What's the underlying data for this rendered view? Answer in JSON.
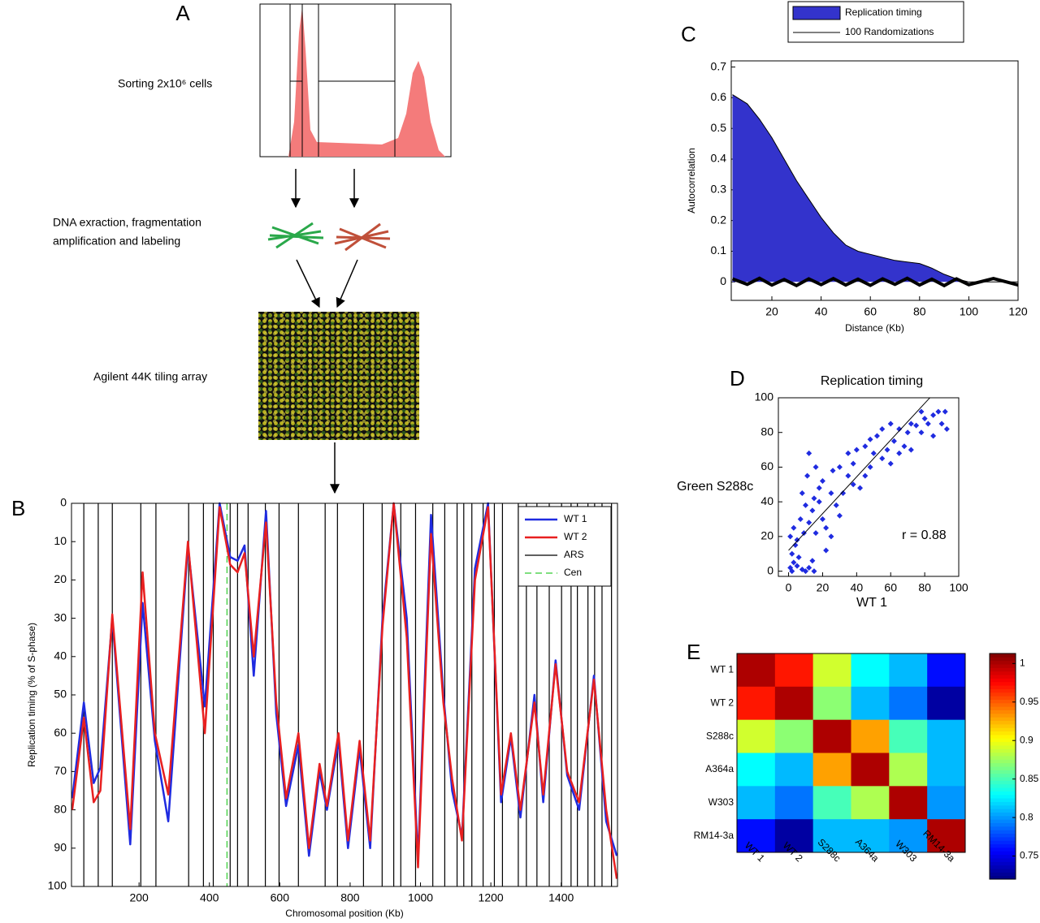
{
  "diagram": {
    "panel": "A",
    "sorting": "Sorting 2x10⁶ cells",
    "dna": [
      "DNA exraction, fragmentation",
      "amplification and labeling"
    ],
    "array": "Agilent 44K tiling array"
  },
  "chart_data": [
    {
      "type": "line",
      "panel": "B",
      "xlabel": "Chromosomal position (Kb)",
      "ylabel": "Replication timing (% of S-phase)",
      "xlim": [
        8,
        1560
      ],
      "ylim": [
        0,
        100
      ],
      "reverse_y": true,
      "xticks": [
        200,
        400,
        600,
        800,
        1000,
        1200,
        1400
      ],
      "yticks": [
        0,
        10,
        20,
        30,
        40,
        50,
        60,
        70,
        80,
        90,
        100
      ],
      "x": [
        10,
        43,
        71,
        90,
        124,
        175,
        210,
        245,
        283,
        339,
        387,
        429,
        459,
        480,
        500,
        526,
        561,
        590,
        618,
        653,
        683,
        713,
        734,
        767,
        794,
        827,
        857,
        892,
        924,
        961,
        993,
        1030,
        1065,
        1090,
        1118,
        1155,
        1192,
        1229,
        1257,
        1284,
        1324,
        1349,
        1384,
        1417,
        1451,
        1493,
        1528,
        1558
      ],
      "series": [
        {
          "name": "WT 1",
          "color": "#1f2be0",
          "values": [
            77,
            52,
            73,
            69,
            30,
            89,
            26,
            62,
            83,
            11,
            53,
            0,
            14,
            15,
            11,
            45,
            2,
            55,
            79,
            63,
            92,
            70,
            80,
            62,
            90,
            64,
            90,
            30,
            0,
            30,
            93,
            3,
            50,
            75,
            87,
            17,
            0,
            78,
            61,
            82,
            50,
            78,
            41,
            71,
            80,
            45,
            83,
            92
          ]
        },
        {
          "name": "WT 2",
          "color": "#e82020",
          "values": [
            80,
            56,
            78,
            75,
            29,
            85,
            18,
            60,
            76,
            10,
            60,
            1,
            16,
            18,
            13,
            40,
            5,
            52,
            77,
            60,
            90,
            68,
            79,
            60,
            88,
            62,
            88,
            32,
            0,
            35,
            95,
            8,
            52,
            72,
            88,
            20,
            1,
            76,
            60,
            80,
            52,
            76,
            42,
            70,
            78,
            46,
            80,
            98
          ]
        },
        {
          "name": "ARS",
          "color": "#000000",
          "style": "vline",
          "x": [
            43,
            84,
            124,
            205,
            248,
            341,
            383,
            411,
            459,
            480,
            510,
            559,
            598,
            653,
            729,
            764,
            838,
            891,
            924,
            944,
            986,
            1035,
            1069,
            1104,
            1123,
            1146,
            1178,
            1210,
            1233,
            1278,
            1301,
            1331,
            1366,
            1401,
            1428,
            1446,
            1476,
            1495,
            1516,
            1543
          ]
        },
        {
          "name": "Cen",
          "color": "#33cc33",
          "style": "vline",
          "dashed": true,
          "x": [
            450
          ]
        }
      ]
    },
    {
      "type": "area",
      "panel": "C",
      "xlabel": "Distance (Kb)",
      "ylabel": "Autocorrelation",
      "xlim": [
        3.5,
        120
      ],
      "ylim": [
        -0.06,
        0.72
      ],
      "xticks": [
        20,
        40,
        60,
        80,
        100,
        120
      ],
      "yticks": [
        0,
        0.1,
        0.2,
        0.3,
        0.4,
        0.5,
        0.6,
        0.7
      ],
      "x": [
        4,
        10,
        15,
        20,
        25,
        30,
        35,
        40,
        45,
        50,
        55,
        60,
        65,
        70,
        75,
        80,
        85,
        90,
        95,
        100,
        110,
        120
      ],
      "series": [
        {
          "name": "Replication timing",
          "color": "#3333cc",
          "values": [
            0.61,
            0.58,
            0.53,
            0.47,
            0.4,
            0.33,
            0.27,
            0.21,
            0.16,
            0.12,
            0.1,
            0.09,
            0.08,
            0.07,
            0.065,
            0.06,
            0.045,
            0.025,
            0.01,
            0,
            0,
            0
          ]
        },
        {
          "name": "100 Randomizations",
          "color": "#000000",
          "values": [
            0.01,
            -0.008,
            0.012,
            -0.01,
            0.008,
            -0.012,
            0.01,
            -0.009,
            0.011,
            -0.01,
            0.009,
            -0.011,
            0.01,
            -0.008,
            0.012,
            -0.01,
            0.009,
            -0.012,
            0.01,
            -0.009,
            0.011,
            -0.01
          ]
        }
      ]
    },
    {
      "type": "scatter",
      "panel": "D",
      "title": "Replication timing",
      "xlabel": "WT 1",
      "ylabel": "Green S288c",
      "annotation": "r = 0.88",
      "xlim": [
        -6,
        100
      ],
      "ylim": [
        -3,
        100
      ],
      "xticks": [
        0,
        20,
        40,
        60,
        80,
        100
      ],
      "yticks": [
        0,
        20,
        40,
        60,
        80,
        100
      ],
      "color": "#1f2be0",
      "x": [
        1,
        2,
        3,
        5,
        8,
        10,
        12,
        14,
        15,
        2,
        4,
        6,
        1,
        3,
        5,
        7,
        9,
        10,
        12,
        8,
        11,
        12,
        14,
        15,
        18,
        20,
        22,
        25,
        18,
        20,
        16,
        25,
        28,
        30,
        32,
        35,
        30,
        26,
        35,
        38,
        40,
        42,
        45,
        48,
        45,
        50,
        52,
        55,
        58,
        60,
        62,
        65,
        60,
        68,
        70,
        72,
        75,
        78,
        72,
        80,
        82,
        85,
        88,
        90,
        92,
        93,
        85,
        78,
        65,
        55,
        48,
        38,
        22,
        16
      ],
      "values": [
        2,
        0,
        5,
        3,
        1,
        0,
        2,
        6,
        0,
        10,
        15,
        8,
        20,
        25,
        18,
        30,
        22,
        38,
        28,
        45,
        55,
        68,
        35,
        42,
        40,
        30,
        25,
        20,
        48,
        52,
        60,
        45,
        38,
        32,
        45,
        55,
        60,
        58,
        68,
        62,
        70,
        48,
        55,
        60,
        72,
        68,
        78,
        65,
        70,
        62,
        75,
        82,
        85,
        72,
        80,
        85,
        84,
        80,
        70,
        88,
        85,
        90,
        92,
        85,
        92,
        82,
        78,
        92,
        68,
        82,
        76,
        50,
        12,
        22
      ],
      "fit_line": {
        "x": [
          0,
          83
        ],
        "y": [
          12,
          100
        ]
      }
    },
    {
      "type": "heatmap",
      "panel": "E",
      "labels": [
        "WT 1",
        "WT 2",
        "S288c",
        "A364a",
        "W303",
        "RM14-3a"
      ],
      "values": [
        [
          1,
          0.97,
          0.89,
          0.83,
          0.81,
          0.76
        ],
        [
          0.97,
          1,
          0.87,
          0.81,
          0.79,
          0.73
        ],
        [
          0.89,
          0.87,
          1,
          0.93,
          0.85,
          0.81
        ],
        [
          0.83,
          0.81,
          0.93,
          1,
          0.88,
          0.81
        ],
        [
          0.81,
          0.79,
          0.85,
          0.88,
          1,
          0.8
        ],
        [
          0.76,
          0.73,
          0.81,
          0.81,
          0.8,
          1
        ]
      ],
      "clim": [
        0.72,
        1.013
      ],
      "cticks": [
        0.75,
        0.8,
        0.85,
        0.9,
        0.95,
        1
      ]
    }
  ]
}
